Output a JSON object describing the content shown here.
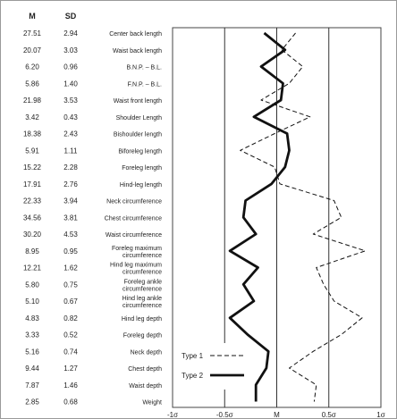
{
  "chart_data": {
    "type": "line",
    "orientation": "horizontal",
    "columns": {
      "m": "M",
      "sd": "SD"
    },
    "rows": [
      {
        "label": [
          "Center back length"
        ],
        "m": "27.51",
        "sd": "2.94"
      },
      {
        "label": [
          "Waist back length"
        ],
        "m": "20.07",
        "sd": "3.03"
      },
      {
        "label": [
          "B.N.P. – B.L."
        ],
        "m": "6.20",
        "sd": "0.96"
      },
      {
        "label": [
          "F.N.P. – B.L."
        ],
        "m": "5.86",
        "sd": "1.40"
      },
      {
        "label": [
          "Waist front length"
        ],
        "m": "21.98",
        "sd": "3.53"
      },
      {
        "label": [
          "Shoulder Length"
        ],
        "m": "3.42",
        "sd": "0.43"
      },
      {
        "label": [
          "Bishoulder length"
        ],
        "m": "18.38",
        "sd": "2.43"
      },
      {
        "label": [
          "Biforeleg length"
        ],
        "m": "5.91",
        "sd": "1.11"
      },
      {
        "label": [
          "Foreleg length"
        ],
        "m": "15.22",
        "sd": "2.28"
      },
      {
        "label": [
          "Hind-leg length"
        ],
        "m": "17.91",
        "sd": "2.76"
      },
      {
        "label": [
          "Neck circumference"
        ],
        "m": "22.33",
        "sd": "3.94"
      },
      {
        "label": [
          "Chest circumference"
        ],
        "m": "34.56",
        "sd": "3.81"
      },
      {
        "label": [
          "Waist circumference"
        ],
        "m": "30.20",
        "sd": "4.53"
      },
      {
        "label": [
          "Foreleg maximum",
          "circumference"
        ],
        "m": "8.95",
        "sd": "0.95"
      },
      {
        "label": [
          "Hind leg maximum",
          "circumference"
        ],
        "m": "12.21",
        "sd": "1.62"
      },
      {
        "label": [
          "Foreleg ankle",
          "circumference"
        ],
        "m": "5.80",
        "sd": "0.75"
      },
      {
        "label": [
          "Hind leg ankle",
          "circumference"
        ],
        "m": "5.10",
        "sd": "0.67"
      },
      {
        "label": [
          "Hind leg depth"
        ],
        "m": "4.83",
        "sd": "0.82"
      },
      {
        "label": [
          "Foreleg depth"
        ],
        "m": "3.33",
        "sd": "0.52"
      },
      {
        "label": [
          "Neck depth"
        ],
        "m": "5.16",
        "sd": "0.74"
      },
      {
        "label": [
          "Chest depth"
        ],
        "m": "9.44",
        "sd": "1.27"
      },
      {
        "label": [
          "Waist depth"
        ],
        "m": "7.87",
        "sd": "1.46"
      },
      {
        "label": [
          "Weight"
        ],
        "m": "2.85",
        "sd": "0.68"
      }
    ],
    "x_ticks": [
      {
        "value": -1,
        "label": "-1σ"
      },
      {
        "value": -0.5,
        "label": "-0.5σ"
      },
      {
        "value": 0,
        "label": "M"
      },
      {
        "value": 0.5,
        "label": "0.5σ"
      },
      {
        "value": 1,
        "label": "1σ"
      }
    ],
    "xlim": [
      -1,
      1
    ],
    "series": [
      {
        "name": "Type 1",
        "style": "dashed",
        "values": [
          0.18,
          0.05,
          0.25,
          0.12,
          -0.15,
          0.32,
          -0.02,
          -0.35,
          -0.02,
          0.03,
          0.55,
          0.62,
          0.35,
          0.85,
          0.38,
          0.45,
          0.55,
          0.82,
          0.62,
          0.35,
          0.12,
          0.38,
          0.36
        ]
      },
      {
        "name": "Type 2",
        "style": "solid",
        "values": [
          -0.12,
          0.08,
          -0.15,
          0.06,
          0.04,
          -0.22,
          0.1,
          0.12,
          0.08,
          -0.05,
          -0.3,
          -0.32,
          -0.2,
          -0.45,
          -0.18,
          -0.32,
          -0.22,
          -0.45,
          -0.28,
          -0.08,
          -0.1,
          -0.2,
          -0.2
        ]
      }
    ],
    "legend_position": "bottom-left"
  }
}
